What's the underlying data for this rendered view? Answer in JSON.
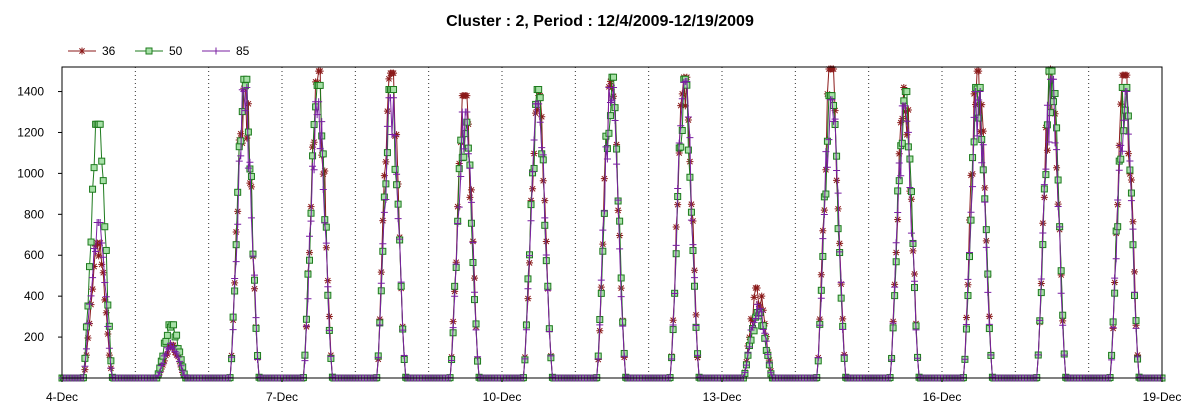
{
  "chart_data": {
    "type": "line",
    "title": "Cluster : 2, Period : 12/4/2009-12/19/2009",
    "xlabel": "",
    "ylabel": "",
    "x_range": [
      "2009-12-04",
      "2009-12-19"
    ],
    "ylim": [
      0,
      1520
    ],
    "x_ticks": [
      "4-Dec",
      "7-Dec",
      "10-Dec",
      "13-Dec",
      "16-Dec",
      "19-Dec"
    ],
    "y_ticks": [
      "200",
      "400",
      "600",
      "800",
      "1000",
      "1200",
      "1400"
    ],
    "y_tick_values": [
      200,
      400,
      600,
      800,
      1000,
      1200,
      1400
    ],
    "grid": "vertical dotted",
    "legend_position": "top-left",
    "x_unit": "day",
    "series": [
      {
        "name": "36",
        "color": "#8b1a1a",
        "marker": "star",
        "daily_peaks": [
          {
            "day": "2009-12-04",
            "peak": 660
          },
          {
            "day": "2009-12-05",
            "peak": 160
          },
          {
            "day": "2009-12-06",
            "peak": 1450
          },
          {
            "day": "2009-12-07",
            "peak": 1500
          },
          {
            "day": "2009-12-08",
            "peak": 1490
          },
          {
            "day": "2009-12-09",
            "peak": 1380
          },
          {
            "day": "2009-12-10",
            "peak": 1380
          },
          {
            "day": "2009-12-11",
            "peak": 1450
          },
          {
            "day": "2009-12-12",
            "peak": 1470
          },
          {
            "day": "2009-12-13",
            "peak": 440
          },
          {
            "day": "2009-12-14",
            "peak": 1510
          },
          {
            "day": "2009-12-15",
            "peak": 1420
          },
          {
            "day": "2009-12-16",
            "peak": 1500
          },
          {
            "day": "2009-12-17",
            "peak": 1510
          },
          {
            "day": "2009-12-18",
            "peak": 1480
          }
        ]
      },
      {
        "name": "50",
        "color": "#1e7b1e",
        "marker": "square",
        "daily_peaks": [
          {
            "day": "2009-12-04",
            "peak": 1240
          },
          {
            "day": "2009-12-05",
            "peak": 260
          },
          {
            "day": "2009-12-06",
            "peak": 1460
          },
          {
            "day": "2009-12-07",
            "peak": 1430
          },
          {
            "day": "2009-12-08",
            "peak": 1410
          },
          {
            "day": "2009-12-09",
            "peak": 1290
          },
          {
            "day": "2009-12-10",
            "peak": 1410
          },
          {
            "day": "2009-12-11",
            "peak": 1470
          },
          {
            "day": "2009-12-12",
            "peak": 1460
          },
          {
            "day": "2009-12-13",
            "peak": 320
          },
          {
            "day": "2009-12-14",
            "peak": 1380
          },
          {
            "day": "2009-12-15",
            "peak": 1400
          },
          {
            "day": "2009-12-16",
            "peak": 1420
          },
          {
            "day": "2009-12-17",
            "peak": 1500
          },
          {
            "day": "2009-12-18",
            "peak": 1420
          }
        ]
      },
      {
        "name": "85",
        "color": "#7a1fa2",
        "marker": "plus",
        "daily_peaks": [
          {
            "day": "2009-12-04",
            "peak": 760
          },
          {
            "day": "2009-12-05",
            "peak": 170
          },
          {
            "day": "2009-12-06",
            "peak": 1420
          },
          {
            "day": "2009-12-07",
            "peak": 1350
          },
          {
            "day": "2009-12-08",
            "peak": 1370
          },
          {
            "day": "2009-12-09",
            "peak": 1300
          },
          {
            "day": "2009-12-10",
            "peak": 1340
          },
          {
            "day": "2009-12-11",
            "peak": 1420
          },
          {
            "day": "2009-12-12",
            "peak": 1450
          },
          {
            "day": "2009-12-13",
            "peak": 360
          },
          {
            "day": "2009-12-14",
            "peak": 1360
          },
          {
            "day": "2009-12-15",
            "peak": 1330
          },
          {
            "day": "2009-12-16",
            "peak": 1400
          },
          {
            "day": "2009-12-17",
            "peak": 1460
          },
          {
            "day": "2009-12-18",
            "peak": 1400
          }
        ]
      }
    ]
  }
}
